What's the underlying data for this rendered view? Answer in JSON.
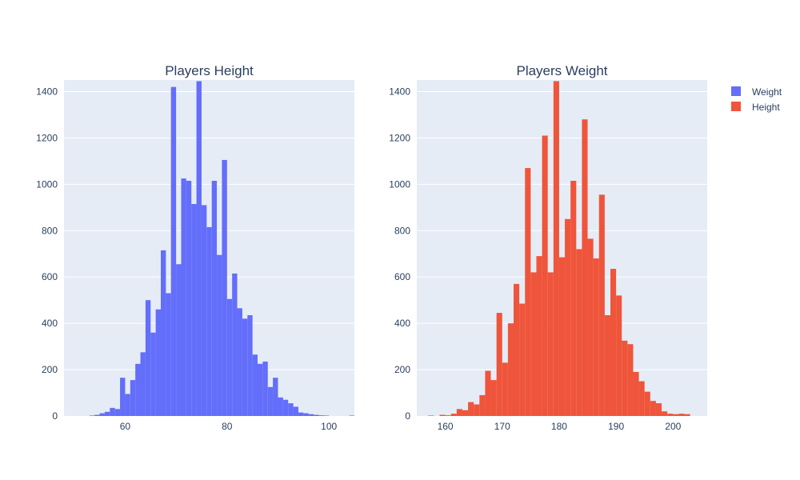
{
  "colors": {
    "background": "#ffffff",
    "plot_bg": "#e5ecf6",
    "grid": "#ffffff",
    "text": "#2a3f5f",
    "weight_series": "#636efa",
    "height_series": "#ef553b"
  },
  "legend": {
    "placement": "top-right",
    "items": [
      {
        "label": "Weight",
        "color": "#636efa"
      },
      {
        "label": "Height",
        "color": "#ef553b"
      }
    ]
  },
  "chart_data": [
    {
      "type": "bar",
      "title": "Players Height",
      "series_name": "Weight",
      "color": "#636efa",
      "xlim": [
        48,
        105
      ],
      "ylim": [
        0,
        1450
      ],
      "xticks": [
        60,
        80,
        100
      ],
      "yticks": [
        0,
        200,
        400,
        600,
        800,
        1000,
        1200,
        1400
      ],
      "bin_start": 53,
      "bin_width": 1,
      "values": [
        2,
        5,
        12,
        18,
        35,
        30,
        165,
        95,
        155,
        225,
        275,
        500,
        360,
        460,
        715,
        530,
        1420,
        655,
        1025,
        1015,
        915,
        1445,
        910,
        815,
        1015,
        695,
        1105,
        505,
        615,
        465,
        420,
        435,
        265,
        225,
        235,
        125,
        165,
        80,
        70,
        55,
        40,
        15,
        12,
        8,
        5,
        3,
        2,
        0,
        0,
        0,
        0,
        2
      ],
      "xlabel": "",
      "ylabel": ""
    },
    {
      "type": "bar",
      "title": "Players Weight",
      "series_name": "Height",
      "color": "#ef553b",
      "xlim": [
        155,
        206
      ],
      "ylim": [
        0,
        1450
      ],
      "xticks": [
        160,
        170,
        180,
        190,
        200
      ],
      "yticks": [
        0,
        200,
        400,
        600,
        800,
        1000,
        1200,
        1400
      ],
      "bin_start": 157,
      "bin_width": 1,
      "values": [
        2,
        0,
        5,
        3,
        10,
        30,
        25,
        60,
        50,
        90,
        195,
        155,
        445,
        230,
        400,
        570,
        485,
        1070,
        620,
        690,
        1210,
        620,
        1445,
        685,
        850,
        1015,
        720,
        1280,
        765,
        680,
        955,
        435,
        635,
        520,
        325,
        310,
        190,
        150,
        105,
        65,
        55,
        20,
        10,
        8,
        10,
        8,
        0,
        0,
        0,
        0,
        0,
        5
      ],
      "xlabel": "",
      "ylabel": ""
    }
  ]
}
